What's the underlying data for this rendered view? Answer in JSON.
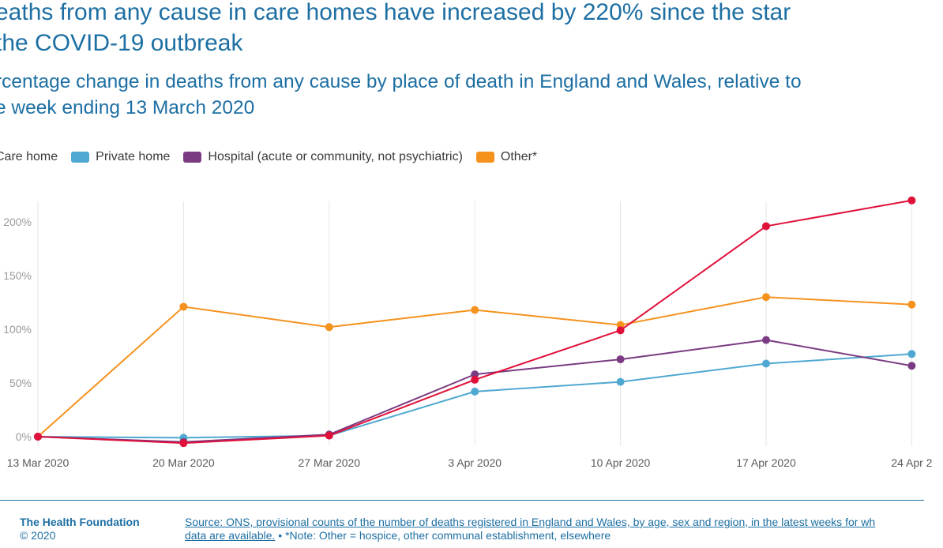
{
  "title_line1": "eaths from any cause in care homes have increased by 220% since the star",
  "title_line2": "the COVID-19 outbreak",
  "subtitle_line1": "rcentage change in deaths from any cause by place of death in England and Wales, relative to",
  "subtitle_line2": "e week ending 13 March 2020",
  "footer": {
    "org": "The Health Foundation",
    "copyright": "© 2020",
    "source_line1": "Source: ONS, provisional counts of the number of deaths registered in England and Wales, by age, sex and region, in the latest weeks for wh",
    "source_line2_link": "data are available.",
    "source_line2_note": " • *Note: Other = hospice, other communal establishment, elsewhere"
  },
  "chart_data": {
    "type": "line",
    "x": [
      "13 Mar 2020",
      "20 Mar 2020",
      "27 Mar 2020",
      "3 Apr 2020",
      "10 Apr 2020",
      "17 Apr 2020",
      "24 Apr 2"
    ],
    "ylim": [
      0,
      220
    ],
    "yticks": [
      0,
      50,
      100,
      150,
      200
    ],
    "ytick_labels": [
      "0%",
      "50%",
      "100%",
      "150%",
      "200%"
    ],
    "grid": "vertical",
    "legend_position": "top-left",
    "series": [
      {
        "name": "Care home",
        "color": "#e0103a",
        "values": [
          0,
          -6,
          1,
          53,
          99,
          196,
          220
        ]
      },
      {
        "name": "Private home",
        "color": "#4fa8d1",
        "values": [
          0,
          -1,
          1,
          42,
          51,
          68,
          77
        ]
      },
      {
        "name": "Hospital (acute or community, not psychiatric)",
        "color": "#7a3b82",
        "values": [
          0,
          -5,
          2,
          58,
          72,
          90,
          66
        ]
      },
      {
        "name": "Other*",
        "color": "#f5921e",
        "values": [
          0,
          121,
          102,
          118,
          104,
          130,
          123
        ]
      }
    ]
  }
}
